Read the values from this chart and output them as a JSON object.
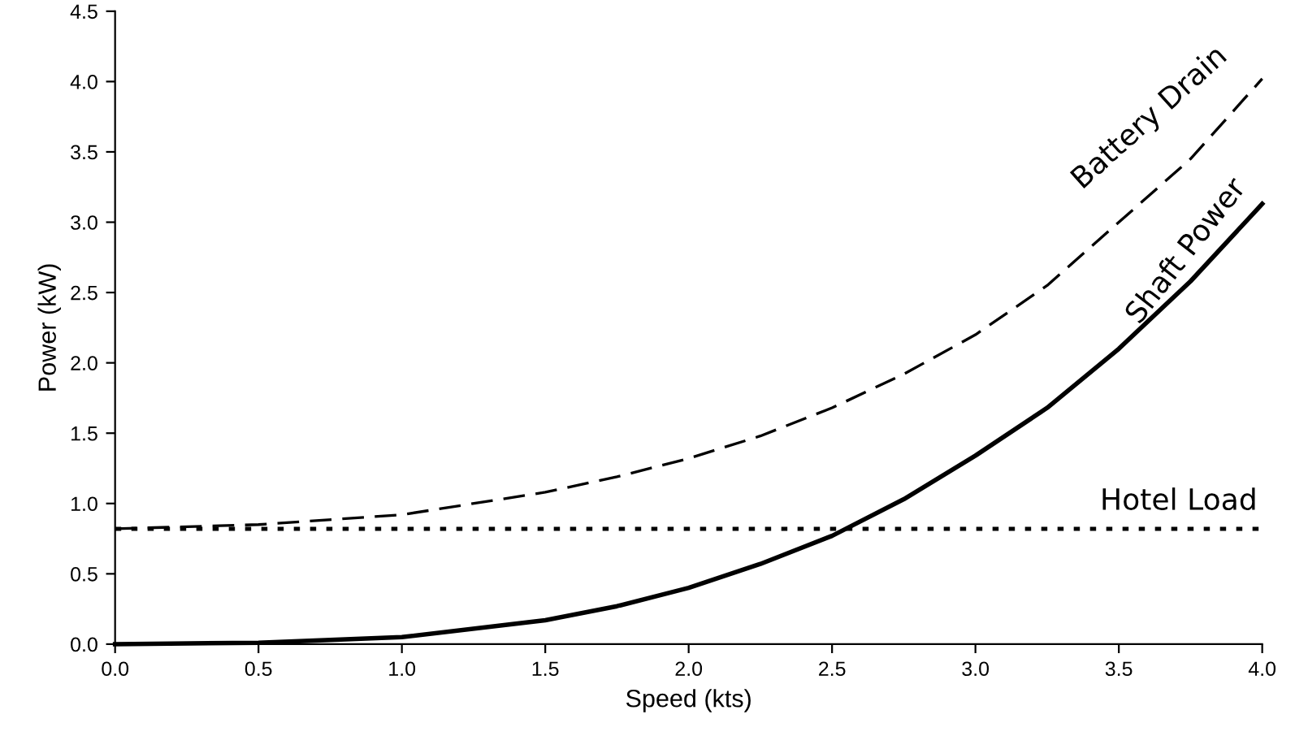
{
  "chart_data": {
    "type": "line",
    "xlabel": "Speed (kts)",
    "ylabel": "Power (kW)",
    "xlim": [
      0,
      4
    ],
    "ylim": [
      0,
      4.5
    ],
    "xticks": [
      {
        "value": 0,
        "label": "0.0"
      },
      {
        "value": 0.5,
        "label": "0.5"
      },
      {
        "value": 1,
        "label": "1.0"
      },
      {
        "value": 1.5,
        "label": "1.5"
      },
      {
        "value": 2,
        "label": "2.0"
      },
      {
        "value": 2.5,
        "label": "2.5"
      },
      {
        "value": 3,
        "label": "3.0"
      },
      {
        "value": 3.5,
        "label": "3.5"
      },
      {
        "value": 4,
        "label": "4.0"
      }
    ],
    "yticks": [
      {
        "value": 0,
        "label": "0.0"
      },
      {
        "value": 0.5,
        "label": "0.5"
      },
      {
        "value": 1,
        "label": "1.0"
      },
      {
        "value": 1.5,
        "label": "1.5"
      },
      {
        "value": 2,
        "label": "2.0"
      },
      {
        "value": 2.5,
        "label": "2.5"
      },
      {
        "value": 3,
        "label": "3.0"
      },
      {
        "value": 3.5,
        "label": "3.5"
      },
      {
        "value": 4,
        "label": "4.0"
      },
      {
        "value": 4.5,
        "label": "4.5"
      }
    ],
    "grid": false,
    "legend": false,
    "marker": "none",
    "x": [
      0,
      0.5,
      1,
      1.5,
      1.75,
      2,
      2.25,
      2.5,
      2.75,
      3,
      3.25,
      3.5,
      3.75,
      4
    ],
    "series": [
      {
        "name": "Battery Drain",
        "color": "#000000",
        "line_style": "dashed",
        "values": [
          0.82,
          0.85,
          0.92,
          1.08,
          1.19,
          1.32,
          1.48,
          1.68,
          1.92,
          2.2,
          2.55,
          3.0,
          3.45,
          4.02
        ]
      },
      {
        "name": "Shaft Power",
        "color": "#000000",
        "line_style": "solid",
        "values": [
          0,
          0.01,
          0.05,
          0.17,
          0.27,
          0.4,
          0.57,
          0.77,
          1.03,
          1.34,
          1.68,
          2.1,
          2.58,
          3.13
        ]
      },
      {
        "name": "Hotel Load",
        "color": "#000000",
        "line_style": "dotted",
        "x": [
          0,
          4
        ],
        "values": [
          0.82,
          0.82
        ]
      }
    ]
  }
}
